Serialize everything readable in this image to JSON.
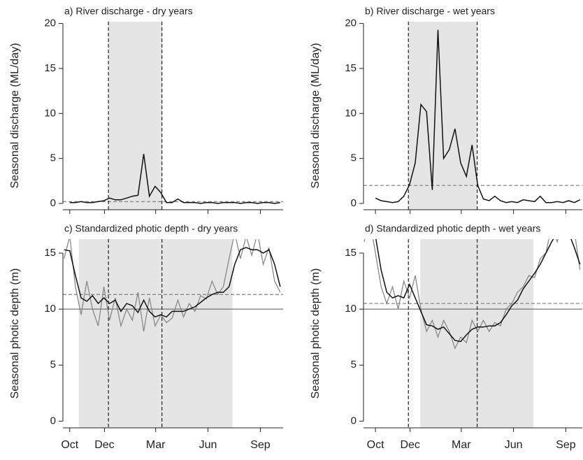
{
  "chart_data": [
    {
      "type": "line",
      "title": "a) River discharge - dry years",
      "y_label": "Seasonal discharge (ML/day)",
      "x": [
        0,
        10,
        20,
        30,
        40,
        50,
        60,
        70,
        80,
        90,
        100,
        110,
        120,
        130,
        140,
        150,
        160,
        170,
        180,
        190,
        200,
        210,
        220,
        230,
        240,
        250,
        260,
        270,
        280,
        290,
        300,
        310,
        320,
        330,
        340,
        350,
        360,
        370
      ],
      "series": [
        {
          "color": "#111111",
          "values": [
            0.1,
            0.1,
            0.2,
            0.1,
            0.1,
            0.2,
            0.3,
            0.6,
            0.4,
            0.4,
            0.6,
            0.8,
            0.9,
            5.5,
            0.8,
            1.9,
            1.2,
            0.1,
            0.1,
            0.5,
            0.1,
            0.1,
            0.1,
            0.0,
            0.1,
            0.1,
            0.0,
            0.1,
            0.1,
            0.1,
            0.0,
            0.1,
            0.1,
            0.0,
            0.1,
            0.1,
            0.0,
            0.1
          ]
        }
      ],
      "xlim": [
        -12,
        375
      ],
      "ylim": [
        -0.7,
        20.2
      ],
      "yticks": [
        0,
        5,
        10,
        15,
        20
      ],
      "xticks": [
        0,
        61,
        151,
        243,
        335
      ],
      "shade": [
        68,
        162
      ],
      "vlines": [
        68,
        162
      ],
      "hline_dashed": 0.2
    },
    {
      "type": "line",
      "title": "b) River discharge - wet years",
      "y_label": "Seasonal discharge (ML/day)",
      "x": [
        0,
        10,
        20,
        30,
        40,
        50,
        60,
        70,
        80,
        90,
        100,
        110,
        120,
        130,
        140,
        150,
        160,
        170,
        180,
        190,
        200,
        210,
        220,
        230,
        240,
        250,
        260,
        270,
        280,
        290,
        300,
        310,
        320,
        330,
        340,
        350,
        360
      ],
      "series": [
        {
          "color": "#111111",
          "values": [
            0.6,
            0.3,
            0.2,
            0.1,
            0.2,
            0.8,
            2.1,
            4.5,
            11,
            10.2,
            1.5,
            19.3,
            5,
            6,
            8.3,
            4.5,
            3,
            6.5,
            2,
            0.5,
            0.3,
            0.8,
            0.3,
            0.1,
            0.2,
            0.1,
            0.4,
            0.3,
            0.2,
            0.8,
            0.1,
            0.1,
            0.2,
            0.1,
            0.3,
            0.1,
            0.4
          ]
        }
      ],
      "xlim": [
        -21,
        364
      ],
      "ylim": [
        -0.7,
        20.2
      ],
      "yticks": [
        0,
        5,
        10,
        15,
        20
      ],
      "xticks": [
        0,
        61,
        151,
        243,
        335
      ],
      "shade": [
        58,
        179
      ],
      "vlines": [
        58,
        179
      ],
      "hline_dashed": 2
    },
    {
      "type": "line",
      "title": "c) Standardized photic depth - dry years",
      "y_label": "Seasonal photic depth (m)",
      "x": [
        -10,
        0,
        10,
        20,
        30,
        40,
        50,
        60,
        70,
        80,
        90,
        100,
        110,
        120,
        130,
        140,
        150,
        160,
        170,
        180,
        190,
        200,
        210,
        220,
        230,
        240,
        250,
        260,
        270,
        280,
        290,
        300,
        310,
        320,
        330,
        340,
        350,
        360,
        370
      ],
      "series": [
        {
          "color": "#888888",
          "values": [
            14.5,
            16.5,
            12,
            9.5,
            12.5,
            10,
            8.5,
            12,
            9,
            11,
            8.5,
            10,
            9,
            11.5,
            8,
            11,
            8.5,
            9.5,
            8.8,
            9.2,
            10.8,
            9.3,
            10.5,
            9.8,
            11.2,
            10.9,
            12.5,
            11.3,
            12,
            14.5,
            16.8,
            14.5,
            16.5,
            14.8,
            16.8,
            14,
            15.5,
            12.5,
            11.5
          ]
        },
        {
          "color": "#111111",
          "values": [
            15.3,
            15.2,
            13,
            11,
            10.7,
            11.2,
            10.5,
            11,
            10.5,
            10.8,
            9.8,
            10.5,
            10.3,
            9.7,
            10.8,
            9.8,
            9.3,
            9.5,
            9.3,
            9.8,
            9.8,
            9.8,
            10,
            10.2,
            10.6,
            11,
            11.3,
            11.5,
            11.5,
            12,
            14,
            15.3,
            15.5,
            15.3,
            15.3,
            15,
            15.3,
            14,
            12
          ]
        }
      ],
      "xlim": [
        -12,
        375
      ],
      "ylim": [
        -0.6,
        16.25
      ],
      "yticks": [
        0,
        5,
        10,
        15
      ],
      "xticks": [
        {
          "value": 0,
          "label": "Oct"
        },
        {
          "value": 61,
          "label": "Dec"
        },
        {
          "value": 151,
          "label": "Mar"
        },
        {
          "value": 243,
          "label": "Jun"
        },
        {
          "value": 335,
          "label": "Sep"
        }
      ],
      "shade": [
        16,
        286
      ],
      "vlines": [
        68,
        162
      ],
      "hline_dashed": 11.3,
      "hline_solid": 10
    },
    {
      "type": "line",
      "title": "d) Standardized photic depth - wet years",
      "y_label": "Seasonal photic depth (m)",
      "x": [
        -20,
        -10,
        0,
        10,
        20,
        30,
        40,
        50,
        60,
        70,
        80,
        90,
        100,
        110,
        120,
        130,
        140,
        150,
        160,
        170,
        180,
        190,
        200,
        210,
        220,
        230,
        240,
        250,
        260,
        270,
        280,
        290,
        300,
        310,
        320,
        330,
        340,
        350,
        360
      ],
      "series": [
        {
          "color": "#888888",
          "values": [
            16,
            18,
            15,
            12,
            10.5,
            12,
            10,
            12.5,
            11,
            13,
            10,
            8,
            9,
            7.5,
            9,
            8,
            6.5,
            7.5,
            7,
            9,
            8,
            9,
            8,
            8.8,
            8.5,
            10,
            10.5,
            11.5,
            12,
            13,
            12.8,
            14.5,
            15,
            17.5,
            16,
            18,
            16.5,
            17,
            13.5
          ]
        },
        {
          "color": "#111111",
          "values": [
            17.2,
            17,
            16.5,
            13.5,
            11.5,
            11,
            11.2,
            11,
            12.2,
            11,
            9.8,
            8.6,
            8.5,
            8.2,
            8.4,
            7.8,
            7.2,
            7.1,
            7.7,
            8.2,
            8.4,
            8.4,
            8.5,
            8.5,
            8.8,
            9.5,
            10.3,
            10.8,
            11.8,
            12.5,
            13.2,
            14,
            15,
            16,
            16.8,
            17.2,
            16.8,
            15.5,
            14
          ]
        }
      ],
      "xlim": [
        -21,
        364
      ],
      "ylim": [
        -0.6,
        16.25
      ],
      "yticks": [
        0,
        5,
        10,
        15
      ],
      "xticks": [
        {
          "value": 0,
          "label": "Oct"
        },
        {
          "value": 61,
          "label": "Dec"
        },
        {
          "value": 151,
          "label": "Mar"
        },
        {
          "value": 243,
          "label": "Jun"
        },
        {
          "value": 335,
          "label": "Sep"
        }
      ],
      "shade": [
        79,
        278
      ],
      "vlines": [
        58,
        179
      ],
      "hline_dashed": 10.5,
      "hline_solid": 10
    }
  ]
}
